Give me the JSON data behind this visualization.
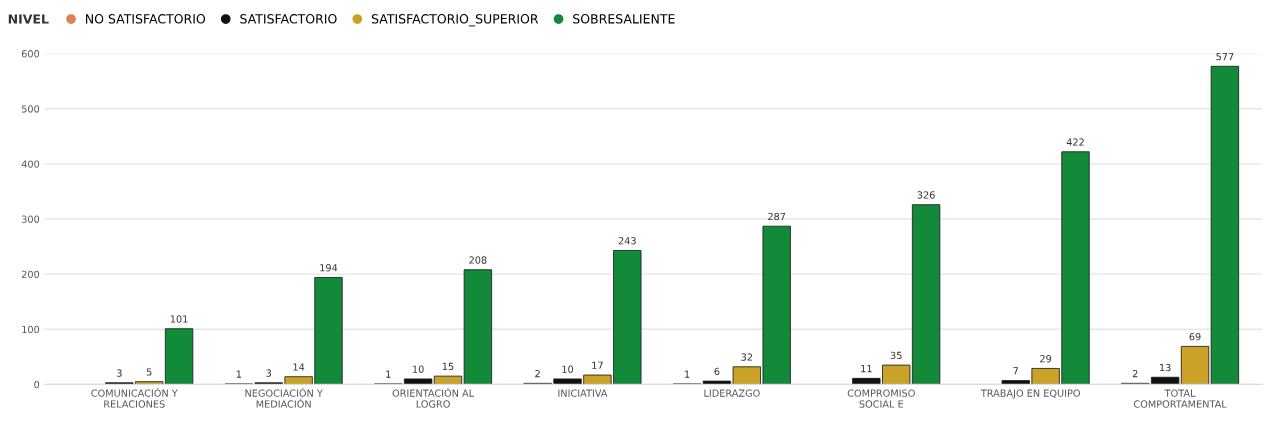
{
  "chart_data": {
    "type": "bar",
    "categories": [
      "COMUNICACIÓN Y\nRELACIONES",
      "NEGOCIACIÓN Y\nMEDIACIÓN",
      "ORIENTACIÓN AL\nLOGRO",
      "INICIATIVA",
      "LIDERAZGO",
      "COMPROMISO\nSOCIAL E",
      "TRABAJO EN EQUIPO",
      "TOTAL\nCOMPORTAMENTAL"
    ],
    "legend_title": "NIVEL",
    "series": [
      {
        "name": "NO SATISFACTORIO",
        "color": "#d9825a",
        "values": [
          null,
          1,
          1,
          2,
          1,
          null,
          null,
          2
        ]
      },
      {
        "name": "SATISFACTORIO",
        "color": "#111111",
        "values": [
          3,
          3,
          10,
          10,
          6,
          11,
          7,
          13
        ]
      },
      {
        "name": "SATISFACTORIO_SUPERIOR",
        "color": "#c9a227",
        "values": [
          5,
          14,
          15,
          17,
          32,
          35,
          29,
          69
        ]
      },
      {
        "name": "SOBRESALIENTE",
        "color": "#138a3a",
        "values": [
          101,
          194,
          208,
          243,
          287,
          326,
          422,
          577
        ]
      }
    ],
    "ylim": [
      0,
      600
    ],
    "yticks": [
      0,
      100,
      200,
      300,
      400,
      500,
      600
    ],
    "grid": "y",
    "legend": "top left",
    "data_labels": true
  }
}
